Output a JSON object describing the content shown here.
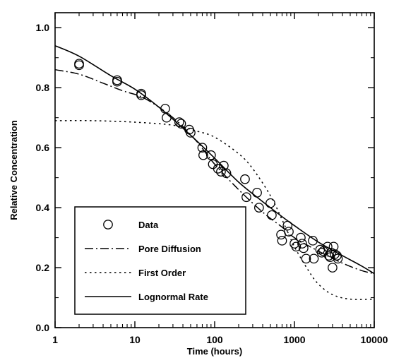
{
  "chart_data": {
    "type": "scatter",
    "title": "",
    "xlabel": "Time (hours)",
    "ylabel": "Relative Concentration",
    "xscale": "log",
    "xlim": [
      1,
      10000
    ],
    "ylim": [
      0.0,
      1.05
    ],
    "xticks": [
      1,
      10,
      100,
      1000,
      10000
    ],
    "xtick_labels": [
      "1",
      "10",
      "100",
      "1000",
      "10000"
    ],
    "yticks": [
      0.0,
      0.2,
      0.4,
      0.6,
      0.8,
      1.0
    ],
    "ytick_labels": [
      "0.0",
      "0.2",
      "0.4",
      "0.6",
      "0.8",
      "1.0"
    ],
    "grid": false,
    "legend_position": "bottom-left",
    "legend": [
      "Data",
      "Pore Diffusion",
      "First Order",
      "Lognormal Rate"
    ],
    "series": [
      {
        "name": "Data",
        "style": "open-circle",
        "points": [
          [
            2.0,
            0.88
          ],
          [
            2.0,
            0.875
          ],
          [
            6.0,
            0.825
          ],
          [
            6.0,
            0.82
          ],
          [
            12.0,
            0.78
          ],
          [
            12.0,
            0.775
          ],
          [
            24.0,
            0.73
          ],
          [
            25.0,
            0.7
          ],
          [
            36.0,
            0.685
          ],
          [
            38.0,
            0.68
          ],
          [
            48.0,
            0.66
          ],
          [
            50.0,
            0.65
          ],
          [
            70.0,
            0.6
          ],
          [
            72.0,
            0.575
          ],
          [
            90.0,
            0.575
          ],
          [
            95.0,
            0.545
          ],
          [
            110.0,
            0.53
          ],
          [
            120.0,
            0.52
          ],
          [
            130.0,
            0.54
          ],
          [
            140.0,
            0.515
          ],
          [
            240.0,
            0.495
          ],
          [
            250.0,
            0.435
          ],
          [
            340.0,
            0.45
          ],
          [
            360.0,
            0.4
          ],
          [
            500.0,
            0.415
          ],
          [
            520.0,
            0.375
          ],
          [
            680.0,
            0.31
          ],
          [
            700.0,
            0.29
          ],
          [
            820.0,
            0.34
          ],
          [
            850.0,
            0.32
          ],
          [
            1000.0,
            0.28
          ],
          [
            1050.0,
            0.27
          ],
          [
            1200.0,
            0.3
          ],
          [
            1250.0,
            0.28
          ],
          [
            1300.0,
            0.265
          ],
          [
            1400.0,
            0.23
          ],
          [
            1700.0,
            0.29
          ],
          [
            1750.0,
            0.23
          ],
          [
            2100.0,
            0.26
          ],
          [
            2200.0,
            0.25
          ],
          [
            2300.0,
            0.255
          ],
          [
            2600.0,
            0.27
          ],
          [
            2700.0,
            0.24
          ],
          [
            2800.0,
            0.235
          ],
          [
            2900.0,
            0.25
          ],
          [
            3100.0,
            0.27
          ],
          [
            3200.0,
            0.245
          ],
          [
            3400.0,
            0.24
          ],
          [
            3500.0,
            0.23
          ],
          [
            3000.0,
            0.2
          ]
        ]
      },
      {
        "name": "Pore Diffusion",
        "style": "dash-dot",
        "points": [
          [
            1,
            0.86
          ],
          [
            2,
            0.845
          ],
          [
            4,
            0.815
          ],
          [
            7,
            0.79
          ],
          [
            12,
            0.77
          ],
          [
            20,
            0.735
          ],
          [
            35,
            0.685
          ],
          [
            60,
            0.62
          ],
          [
            100,
            0.545
          ],
          [
            200,
            0.46
          ],
          [
            400,
            0.385
          ],
          [
            700,
            0.335
          ],
          [
            1000,
            0.3
          ],
          [
            2000,
            0.255
          ],
          [
            4000,
            0.215
          ],
          [
            7000,
            0.19
          ],
          [
            10000,
            0.18
          ]
        ]
      },
      {
        "name": "First Order",
        "style": "dotted",
        "points": [
          [
            1,
            0.69
          ],
          [
            3,
            0.69
          ],
          [
            10,
            0.685
          ],
          [
            30,
            0.675
          ],
          [
            60,
            0.655
          ],
          [
            100,
            0.635
          ],
          [
            200,
            0.58
          ],
          [
            300,
            0.53
          ],
          [
            500,
            0.44
          ],
          [
            700,
            0.36
          ],
          [
            1000,
            0.27
          ],
          [
            1500,
            0.19
          ],
          [
            2000,
            0.145
          ],
          [
            3000,
            0.11
          ],
          [
            5000,
            0.095
          ],
          [
            10000,
            0.095
          ]
        ]
      },
      {
        "name": "Lognormal Rate",
        "style": "solid",
        "points": [
          [
            1,
            0.94
          ],
          [
            2,
            0.905
          ],
          [
            5,
            0.84
          ],
          [
            10,
            0.795
          ],
          [
            20,
            0.735
          ],
          [
            40,
            0.665
          ],
          [
            70,
            0.605
          ],
          [
            100,
            0.565
          ],
          [
            200,
            0.485
          ],
          [
            400,
            0.42
          ],
          [
            700,
            0.37
          ],
          [
            1000,
            0.34
          ],
          [
            2000,
            0.285
          ],
          [
            4000,
            0.24
          ],
          [
            7000,
            0.205
          ],
          [
            10000,
            0.18
          ]
        ]
      }
    ]
  }
}
